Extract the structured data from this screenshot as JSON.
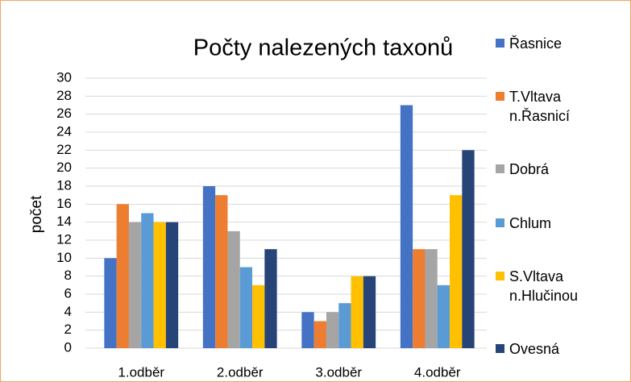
{
  "chart_data": {
    "type": "bar",
    "title": "Počty nalezených taxonů",
    "y_label": "počet",
    "categories": [
      "1.odběr",
      "2.odběr",
      "3.odběr",
      "4.odběr"
    ],
    "series": [
      {
        "name": "Řasnice",
        "color": "#4472c4",
        "values": [
          10,
          18,
          4,
          27
        ]
      },
      {
        "name": "T.Vltava n.Řasnicí",
        "color": "#ed7d31",
        "values": [
          16,
          17,
          3,
          11
        ]
      },
      {
        "name": "Dobrá",
        "color": "#a5a5a5",
        "values": [
          14,
          13,
          4,
          11
        ]
      },
      {
        "name": "Chlum",
        "color": "#5b9bd5",
        "values": [
          15,
          9,
          5,
          7
        ]
      },
      {
        "name": "S.Vltava n.Hlučinou",
        "color": "#ffc000",
        "values": [
          14,
          7,
          8,
          17
        ]
      },
      {
        "name": "Ovesná",
        "color": "#264478",
        "values": [
          14,
          11,
          8,
          22
        ]
      }
    ],
    "ylim": [
      0,
      30
    ],
    "yticks": [
      0,
      2,
      4,
      6,
      8,
      10,
      12,
      14,
      16,
      18,
      20,
      22,
      24,
      26,
      28,
      30
    ],
    "grid": true,
    "legend": "right"
  }
}
